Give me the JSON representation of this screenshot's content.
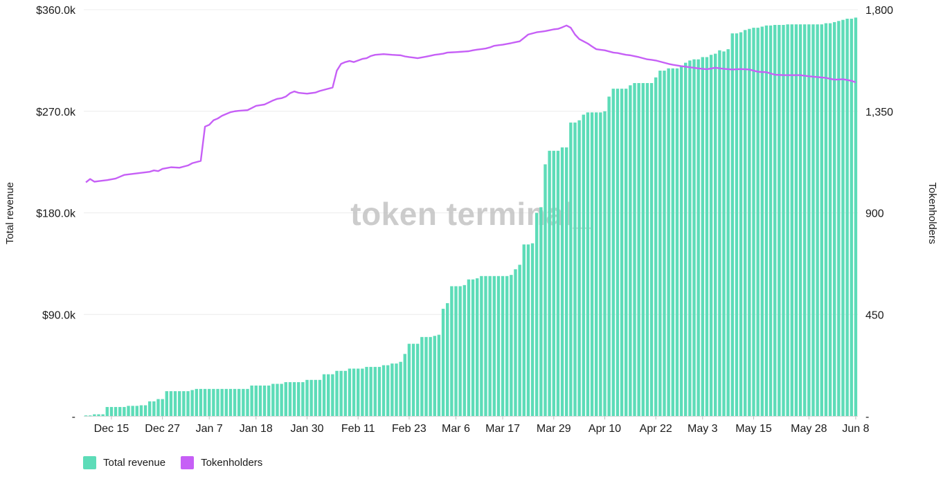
{
  "chart_data": {
    "type": "bar+line",
    "watermark": "token terminal_",
    "left_axis": {
      "label": "Total revenue",
      "ticks": [
        "-",
        "$90.0k",
        "$180.0k",
        "$270.0k",
        "$360.0k"
      ],
      "range": [
        0,
        360000
      ]
    },
    "right_axis": {
      "label": "Tokenholders",
      "ticks": [
        "-",
        "450",
        "900",
        "1,350",
        "1,800"
      ],
      "range": [
        0,
        1800
      ]
    },
    "x_ticks": [
      {
        "label": "Dec 15",
        "day": 6
      },
      {
        "label": "Dec 27",
        "day": 18
      },
      {
        "label": "Jan 7",
        "day": 29
      },
      {
        "label": "Jan 18",
        "day": 40
      },
      {
        "label": "Jan 30",
        "day": 52
      },
      {
        "label": "Feb 11",
        "day": 64
      },
      {
        "label": "Feb 23",
        "day": 76
      },
      {
        "label": "Mar 6",
        "day": 87
      },
      {
        "label": "Mar 17",
        "day": 98
      },
      {
        "label": "Mar 29",
        "day": 110
      },
      {
        "label": "Apr 10",
        "day": 122
      },
      {
        "label": "Apr 22",
        "day": 134
      },
      {
        "label": "May 3",
        "day": 145
      },
      {
        "label": "May 15",
        "day": 157
      },
      {
        "label": "May 28",
        "day": 170
      },
      {
        "label": "Jun 8",
        "day": 181
      }
    ],
    "total_days": 182,
    "series": [
      {
        "name": "Total revenue",
        "type": "bar",
        "color": "#5ddcb8",
        "points": [
          [
            0,
            500
          ],
          [
            2,
            1500
          ],
          [
            5,
            8000
          ],
          [
            10,
            9000
          ],
          [
            13,
            9500
          ],
          [
            15,
            13000
          ],
          [
            17,
            15000
          ],
          [
            19,
            22000
          ],
          [
            25,
            23000
          ],
          [
            26,
            24000
          ],
          [
            39,
            27000
          ],
          [
            44,
            28500
          ],
          [
            47,
            30000
          ],
          [
            52,
            32000
          ],
          [
            56,
            37000
          ],
          [
            59,
            40000
          ],
          [
            62,
            42000
          ],
          [
            66,
            43500
          ],
          [
            70,
            45000
          ],
          [
            72,
            46500
          ],
          [
            74,
            48000
          ],
          [
            75,
            55000
          ],
          [
            76,
            64000
          ],
          [
            79,
            70000
          ],
          [
            82,
            71000
          ],
          [
            83,
            72000
          ],
          [
            84,
            95000
          ],
          [
            85,
            100000
          ],
          [
            86,
            115000
          ],
          [
            89,
            116000
          ],
          [
            90,
            121000
          ],
          [
            92,
            122000
          ],
          [
            93,
            124000
          ],
          [
            100,
            125000
          ],
          [
            101,
            130000
          ],
          [
            102,
            134000
          ],
          [
            103,
            152000
          ],
          [
            105,
            153000
          ],
          [
            106,
            180000
          ],
          [
            107,
            185000
          ],
          [
            108,
            223000
          ],
          [
            109,
            235000
          ],
          [
            112,
            238000
          ],
          [
            114,
            260000
          ],
          [
            116,
            262000
          ],
          [
            117,
            267000
          ],
          [
            118,
            269000
          ],
          [
            122,
            270000
          ],
          [
            123,
            283000
          ],
          [
            124,
            290000
          ],
          [
            128,
            293000
          ],
          [
            129,
            295000
          ],
          [
            134,
            300000
          ],
          [
            135,
            306000
          ],
          [
            137,
            308000
          ],
          [
            140,
            310000
          ],
          [
            141,
            313000
          ],
          [
            142,
            315000
          ],
          [
            143,
            316000
          ],
          [
            145,
            318000
          ],
          [
            147,
            320000
          ],
          [
            148,
            321000
          ],
          [
            149,
            324000
          ],
          [
            150,
            323000
          ],
          [
            151,
            325000
          ],
          [
            152,
            339000
          ],
          [
            154,
            340000
          ],
          [
            155,
            342000
          ],
          [
            156,
            343000
          ],
          [
            157,
            344000
          ],
          [
            159,
            345000
          ],
          [
            160,
            346000
          ],
          [
            162,
            346500
          ],
          [
            165,
            347000
          ],
          [
            170,
            347000
          ],
          [
            174,
            348000
          ],
          [
            176,
            349000
          ],
          [
            177,
            350000
          ],
          [
            178,
            351000
          ],
          [
            179,
            352000
          ],
          [
            181,
            353000
          ]
        ]
      },
      {
        "name": "Tokenholders",
        "type": "line",
        "color": "#c65ff6",
        "points": [
          [
            0,
            1035
          ],
          [
            1,
            1050
          ],
          [
            2,
            1038
          ],
          [
            5,
            1045
          ],
          [
            7,
            1052
          ],
          [
            8,
            1060
          ],
          [
            9,
            1068
          ],
          [
            12,
            1075
          ],
          [
            15,
            1082
          ],
          [
            16,
            1088
          ],
          [
            17,
            1085
          ],
          [
            18,
            1095
          ],
          [
            20,
            1102
          ],
          [
            22,
            1100
          ],
          [
            24,
            1110
          ],
          [
            25,
            1120
          ],
          [
            26,
            1125
          ],
          [
            27,
            1130
          ],
          [
            28,
            1282
          ],
          [
            29,
            1290
          ],
          [
            30,
            1310
          ],
          [
            31,
            1318
          ],
          [
            32,
            1330
          ],
          [
            34,
            1346
          ],
          [
            35,
            1350
          ],
          [
            36,
            1352
          ],
          [
            38,
            1355
          ],
          [
            40,
            1374
          ],
          [
            42,
            1380
          ],
          [
            44,
            1398
          ],
          [
            45,
            1405
          ],
          [
            46,
            1408
          ],
          [
            47,
            1415
          ],
          [
            48,
            1430
          ],
          [
            49,
            1438
          ],
          [
            50,
            1432
          ],
          [
            52,
            1428
          ],
          [
            54,
            1433
          ],
          [
            55,
            1440
          ],
          [
            57,
            1450
          ],
          [
            58,
            1455
          ],
          [
            59,
            1530
          ],
          [
            60,
            1560
          ],
          [
            61,
            1568
          ],
          [
            62,
            1573
          ],
          [
            63,
            1568
          ],
          [
            64,
            1575
          ],
          [
            65,
            1582
          ],
          [
            66,
            1585
          ],
          [
            67,
            1595
          ],
          [
            68,
            1600
          ],
          [
            70,
            1603
          ],
          [
            72,
            1600
          ],
          [
            74,
            1598
          ],
          [
            75,
            1593
          ],
          [
            76,
            1590
          ],
          [
            77,
            1588
          ],
          [
            78,
            1585
          ],
          [
            80,
            1592
          ],
          [
            82,
            1600
          ],
          [
            84,
            1605
          ],
          [
            85,
            1610
          ],
          [
            87,
            1612
          ],
          [
            90,
            1616
          ],
          [
            91,
            1620
          ],
          [
            92,
            1623
          ],
          [
            94,
            1628
          ],
          [
            95,
            1633
          ],
          [
            96,
            1640
          ],
          [
            98,
            1645
          ],
          [
            100,
            1652
          ],
          [
            102,
            1660
          ],
          [
            104,
            1690
          ],
          [
            106,
            1700
          ],
          [
            108,
            1705
          ],
          [
            110,
            1713
          ],
          [
            111,
            1715
          ],
          [
            112,
            1722
          ],
          [
            113,
            1730
          ],
          [
            114,
            1720
          ],
          [
            115,
            1690
          ],
          [
            116,
            1670
          ],
          [
            118,
            1650
          ],
          [
            119,
            1637
          ],
          [
            120,
            1625
          ],
          [
            122,
            1620
          ],
          [
            123,
            1615
          ],
          [
            124,
            1610
          ],
          [
            125,
            1608
          ],
          [
            126,
            1604
          ],
          [
            127,
            1600
          ],
          [
            128,
            1598
          ],
          [
            129,
            1594
          ],
          [
            130,
            1590
          ],
          [
            131,
            1585
          ],
          [
            132,
            1580
          ],
          [
            133,
            1578
          ],
          [
            134,
            1575
          ],
          [
            135,
            1570
          ],
          [
            136,
            1565
          ],
          [
            137,
            1560
          ],
          [
            138,
            1556
          ],
          [
            140,
            1550
          ],
          [
            142,
            1545
          ],
          [
            144,
            1540
          ],
          [
            146,
            1536
          ],
          [
            148,
            1543
          ],
          [
            150,
            1538
          ],
          [
            152,
            1535
          ],
          [
            154,
            1537
          ],
          [
            156,
            1535
          ],
          [
            157,
            1530
          ],
          [
            158,
            1525
          ],
          [
            160,
            1523
          ],
          [
            162,
            1512
          ],
          [
            164,
            1510
          ],
          [
            168,
            1510
          ],
          [
            170,
            1505
          ],
          [
            174,
            1498
          ],
          [
            176,
            1490
          ],
          [
            178,
            1492
          ],
          [
            180,
            1485
          ],
          [
            181,
            1478
          ]
        ]
      }
    ]
  },
  "legend": [
    {
      "label": "Total revenue",
      "color": "#5ddcb8"
    },
    {
      "label": "Tokenholders",
      "color": "#c65ff6"
    }
  ]
}
